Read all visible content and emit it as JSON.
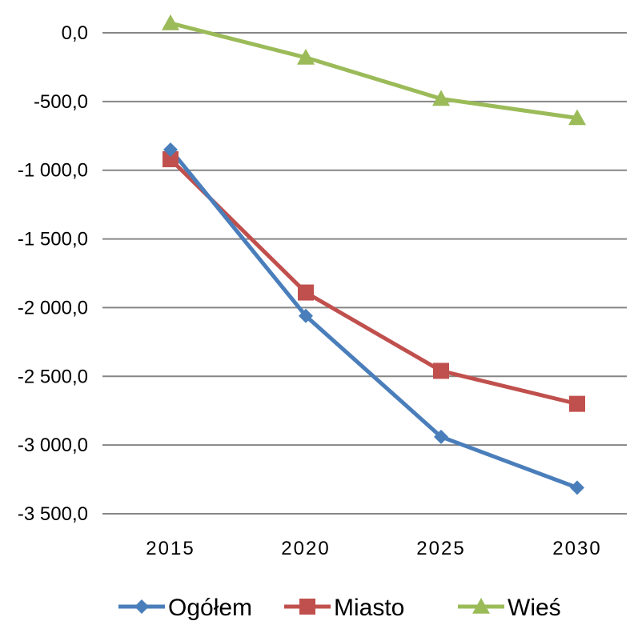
{
  "chart_data": {
    "type": "line",
    "title": "",
    "xlabel": "",
    "ylabel": "",
    "categories": [
      "2015",
      "2020",
      "2025",
      "2030"
    ],
    "ylim": [
      -3500,
      0
    ],
    "yticks": [
      0,
      -500,
      -1000,
      -1500,
      -2000,
      -2500,
      -3000,
      -3500
    ],
    "ytick_labels": [
      "0,0",
      "-500,0",
      "-1 000,0",
      "-1 500,0",
      "-2 000,0",
      "-2 500,0",
      "-3 000,0",
      "-3 500,0"
    ],
    "grid": true,
    "legend_position": "bottom",
    "series": [
      {
        "name": "Ogółem",
        "values": [
          -850,
          -2060,
          -2940,
          -3310
        ],
        "color": "#4a7ebb",
        "marker": "diamond"
      },
      {
        "name": "Miasto",
        "values": [
          -920,
          -1890,
          -2460,
          -2700
        ],
        "color": "#c0504d",
        "marker": "square"
      },
      {
        "name": "Wieś",
        "values": [
          70,
          -180,
          -480,
          -620
        ],
        "color": "#9bbb59",
        "marker": "triangle"
      }
    ]
  }
}
